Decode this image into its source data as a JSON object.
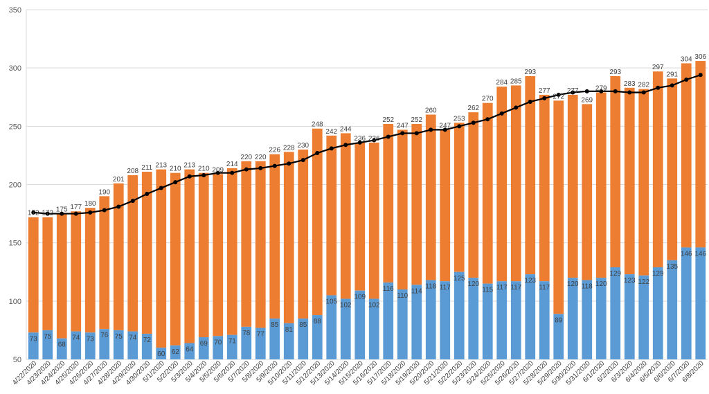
{
  "chart_data": {
    "type": "bar",
    "stacked": true,
    "colors": {
      "lower": "#5b9bd5",
      "upper": "#ed7d31",
      "line": "#000000",
      "grid": "#d9d9d9"
    },
    "ylim": [
      50,
      350
    ],
    "yticks": [
      50,
      100,
      150,
      200,
      250,
      300,
      350
    ],
    "grid": true,
    "categories": [
      "4/22/2020",
      "4/23/2020",
      "4/24/2020",
      "4/25/2020",
      "4/26/2020",
      "4/27/2020",
      "4/28/2020",
      "4/29/2020",
      "4/30/2020",
      "5/1/2020",
      "5/2/2020",
      "5/3/2020",
      "5/4/2020",
      "5/5/2020",
      "5/6/2020",
      "5/7/2020",
      "5/8/2020",
      "5/9/2020",
      "5/10/2020",
      "5/11/2020",
      "5/12/2020",
      "5/13/2020",
      "5/14/2020",
      "5/15/2020",
      "5/16/2020",
      "5/17/2020",
      "5/18/2020",
      "5/19/2020",
      "5/20/2020",
      "5/21/2020",
      "5/22/2020",
      "5/23/2020",
      "5/24/2020",
      "5/25/2020",
      "5/26/2020",
      "5/27/2020",
      "5/28/2020",
      "5/29/2020",
      "5/30/2020",
      "5/31/2020",
      "6/1/2020",
      "6/2/2020",
      "6/3/2020",
      "6/4/2020",
      "6/5/2020",
      "6/6/2020",
      "6/7/2020",
      "6/8/2020"
    ],
    "lower_values": [
      73,
      75,
      68,
      74,
      73,
      76,
      75,
      74,
      72,
      60,
      62,
      64,
      69,
      70,
      71,
      78,
      77,
      85,
      81,
      85,
      88,
      105,
      102,
      109,
      102,
      116,
      110,
      114,
      118,
      117,
      125,
      120,
      115,
      117,
      117,
      123,
      117,
      89,
      120,
      118,
      120,
      129,
      123,
      122,
      129,
      135,
      146,
      146
    ],
    "totals": [
      172,
      172,
      175,
      177,
      180,
      190,
      201,
      208,
      211,
      213,
      210,
      213,
      210,
      209,
      214,
      220,
      220,
      226,
      228,
      230,
      248,
      242,
      244,
      236,
      236,
      252,
      247,
      252,
      260,
      247,
      253,
      262,
      270,
      284,
      285,
      293,
      277,
      272,
      277,
      269,
      279,
      293,
      283,
      282,
      297,
      291,
      304,
      306
    ],
    "total_labels": [
      "172",
      "172",
      "175",
      "177",
      "180",
      "190",
      "201",
      "208",
      "211",
      "213",
      "210",
      "213",
      "210",
      "209",
      "214",
      "220",
      "220",
      "226",
      "228",
      "230",
      "248",
      "242",
      "244",
      "236",
      "236",
      "252",
      "247",
      "252",
      "260",
      "247",
      "253",
      "262",
      "270",
      "284",
      "285",
      "293",
      "277",
      "272",
      "277",
      "269",
      "279",
      "293",
      "283",
      "282",
      "297",
      "291",
      "304",
      "306"
    ],
    "moving_average": [
      176,
      175,
      175,
      175,
      176,
      178,
      181,
      186,
      192,
      197,
      202,
      207,
      208,
      210,
      210,
      213,
      214,
      216,
      218,
      221,
      227,
      231,
      234,
      236,
      238,
      241,
      244,
      244,
      247,
      247,
      250,
      253,
      256,
      261,
      266,
      271,
      274,
      277,
      279,
      280,
      280,
      280,
      279,
      279,
      283,
      285,
      290,
      294
    ]
  }
}
